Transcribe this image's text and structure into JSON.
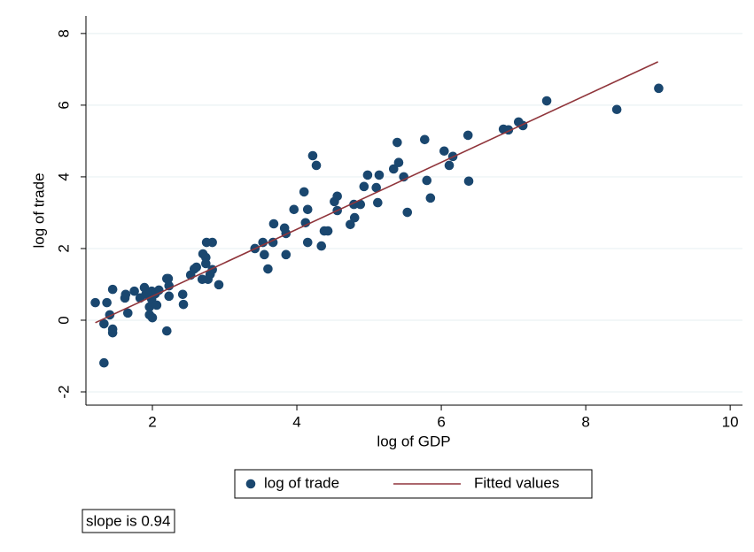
{
  "chart_data": {
    "type": "scatter",
    "x_label": "log of GDP",
    "y_label": "log of trade",
    "annotation": "slope is 0.94",
    "xlim": [
      1.08,
      10.17
    ],
    "ylim": [
      -2.37,
      8.49
    ],
    "xticks": [
      2,
      4,
      6,
      8,
      10
    ],
    "yticks": [
      -2,
      0,
      2,
      4,
      6,
      8
    ],
    "grid": true,
    "legend": "bottom",
    "series": [
      {
        "name": "log of trade",
        "type": "scatter",
        "color": "#1a476f",
        "x": [
          1.21,
          1.33,
          1.33,
          1.37,
          1.41,
          1.45,
          1.45,
          1.45,
          1.62,
          1.66,
          1.63,
          1.75,
          1.83,
          1.89,
          1.91,
          1.96,
          1.96,
          1.99,
          1.99,
          2.0,
          2.04,
          2.06,
          2.09,
          2.2,
          2.22,
          2.2,
          2.23,
          2.23,
          2.42,
          2.43,
          2.53,
          2.58,
          2.61,
          2.69,
          2.7,
          2.74,
          2.74,
          2.77,
          2.75,
          2.83,
          2.83,
          2.8,
          2.92,
          3.42,
          3.53,
          3.55,
          3.6,
          3.68,
          3.67,
          3.83,
          3.85,
          3.85,
          3.96,
          4.1,
          4.12,
          4.15,
          4.15,
          4.22,
          4.27,
          4.34,
          4.38,
          4.43,
          4.52,
          4.56,
          4.56,
          4.74,
          4.79,
          4.8,
          4.88,
          4.93,
          4.98,
          5.1,
          5.12,
          5.14,
          5.34,
          5.39,
          5.41,
          5.48,
          5.53,
          5.77,
          5.8,
          5.85,
          6.04,
          6.11,
          6.16,
          6.37,
          6.38,
          6.86,
          6.93,
          7.07,
          7.13,
          7.46,
          8.43,
          9.01
        ],
        "values": [
          0.49,
          -0.1,
          -1.19,
          0.49,
          0.15,
          -0.25,
          0.86,
          -0.35,
          0.62,
          0.2,
          0.72,
          0.81,
          0.62,
          0.91,
          0.72,
          0.15,
          0.37,
          0.59,
          0.81,
          0.07,
          0.74,
          0.42,
          0.84,
          1.16,
          1.16,
          -0.3,
          0.96,
          0.67,
          0.72,
          0.44,
          1.26,
          1.43,
          1.48,
          1.14,
          1.85,
          1.75,
          1.58,
          1.14,
          2.17,
          2.17,
          1.41,
          1.28,
          0.99,
          2.0,
          2.17,
          1.83,
          1.43,
          2.69,
          2.17,
          2.57,
          2.42,
          1.83,
          3.09,
          3.58,
          2.72,
          3.09,
          2.17,
          4.59,
          4.32,
          2.07,
          2.49,
          2.49,
          3.31,
          3.46,
          3.06,
          2.67,
          3.23,
          2.86,
          3.23,
          3.73,
          4.05,
          3.7,
          3.28,
          4.05,
          4.22,
          4.96,
          4.4,
          4.0,
          3.01,
          5.04,
          3.9,
          3.41,
          4.72,
          4.32,
          4.57,
          5.16,
          3.88,
          5.33,
          5.31,
          5.53,
          5.43,
          6.12,
          5.88,
          6.47
        ]
      },
      {
        "name": "Fitted values",
        "type": "line",
        "color": "#90353b",
        "x": [
          1.21,
          9.0
        ],
        "values": [
          -0.07,
          7.21
        ]
      }
    ]
  }
}
